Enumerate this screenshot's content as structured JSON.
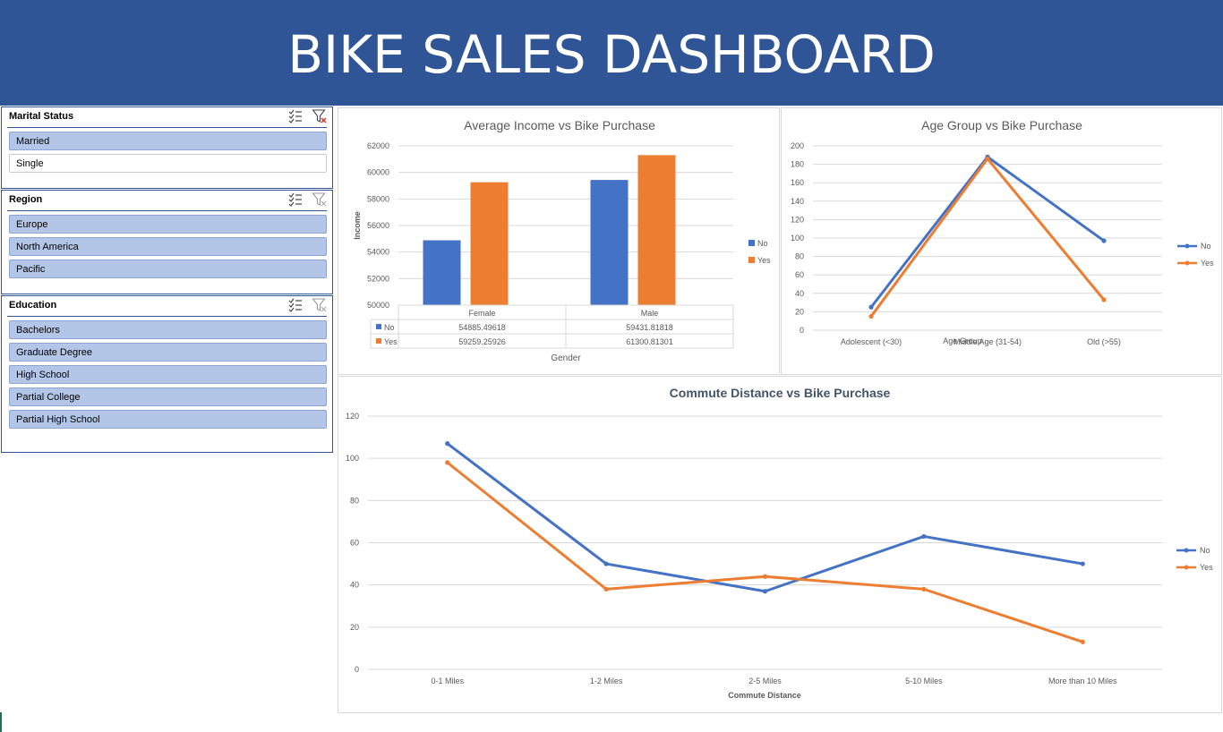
{
  "title": "BIKE SALES DASHBOARD",
  "colors": {
    "banner": "#2f5597",
    "no": "#4472c4",
    "yes": "#ed7d31",
    "selected": "#b4c6e7"
  },
  "slicers": [
    {
      "title": "Marital Status",
      "icons": [
        "multi-select-icon",
        "clear-filter-icon"
      ],
      "items": [
        {
          "label": "Married",
          "selected": true
        },
        {
          "label": "Single",
          "selected": false
        }
      ]
    },
    {
      "title": "Region",
      "icons": [
        "multi-select-icon",
        "clear-filter-icon"
      ],
      "items": [
        {
          "label": "Europe",
          "selected": true
        },
        {
          "label": "North America",
          "selected": true
        },
        {
          "label": "Pacific",
          "selected": true
        }
      ]
    },
    {
      "title": "Education",
      "icons": [
        "multi-select-icon",
        "clear-filter-icon"
      ],
      "items": [
        {
          "label": "Bachelors",
          "selected": true
        },
        {
          "label": "Graduate Degree",
          "selected": true
        },
        {
          "label": "High School",
          "selected": true
        },
        {
          "label": "Partial College",
          "selected": true
        },
        {
          "label": "Partial High School",
          "selected": true
        }
      ]
    }
  ],
  "chart_data": [
    {
      "type": "bar",
      "title": "Average Income  vs Bike Purchase",
      "xlabel": "Gender",
      "ylabel": "Income",
      "categories": [
        "Female",
        "Male"
      ],
      "series": [
        {
          "name": "No",
          "values": [
            54885.49618,
            59431.81818
          ],
          "labels": [
            "54885.49618",
            "59431.81818"
          ]
        },
        {
          "name": "Yes",
          "values": [
            59259.25926,
            61300.81301
          ],
          "labels": [
            "59259.25926",
            "61300.81301"
          ]
        }
      ],
      "ylim": [
        50000,
        62000
      ],
      "yticks": [
        "50000",
        "52000",
        "54000",
        "56000",
        "58000",
        "60000",
        "62000"
      ],
      "legend": "right",
      "data_table": true,
      "grid": true
    },
    {
      "type": "line",
      "title": "Age Group vs Bike Purchase",
      "xlabel": "Age Group",
      "categories": [
        "Adolescent (<30)",
        "Middle Age (31-54)",
        "Old (>55)"
      ],
      "series": [
        {
          "name": "No",
          "values": [
            25,
            188,
            97
          ]
        },
        {
          "name": "Yes",
          "values": [
            15,
            186,
            33
          ]
        }
      ],
      "ylim": [
        0,
        200
      ],
      "yticks": [
        "0",
        "20",
        "40",
        "60",
        "80",
        "100",
        "120",
        "140",
        "160",
        "180",
        "200"
      ],
      "legend": "right",
      "grid": true
    },
    {
      "type": "line",
      "title": "Commute Distance vs Bike Purchase",
      "xlabel": "Commute Distance",
      "categories": [
        "0-1 Miles",
        "1-2 Miles",
        "2-5 Miles",
        "5-10 Miles",
        "More than 10 Miles"
      ],
      "series": [
        {
          "name": "No",
          "values": [
            107,
            50,
            37,
            63,
            50
          ]
        },
        {
          "name": "Yes",
          "values": [
            98,
            38,
            44,
            38,
            13
          ]
        }
      ],
      "ylim": [
        0,
        120
      ],
      "yticks": [
        "0",
        "20",
        "40",
        "60",
        "80",
        "100",
        "120"
      ],
      "legend": "right",
      "grid": true
    }
  ]
}
